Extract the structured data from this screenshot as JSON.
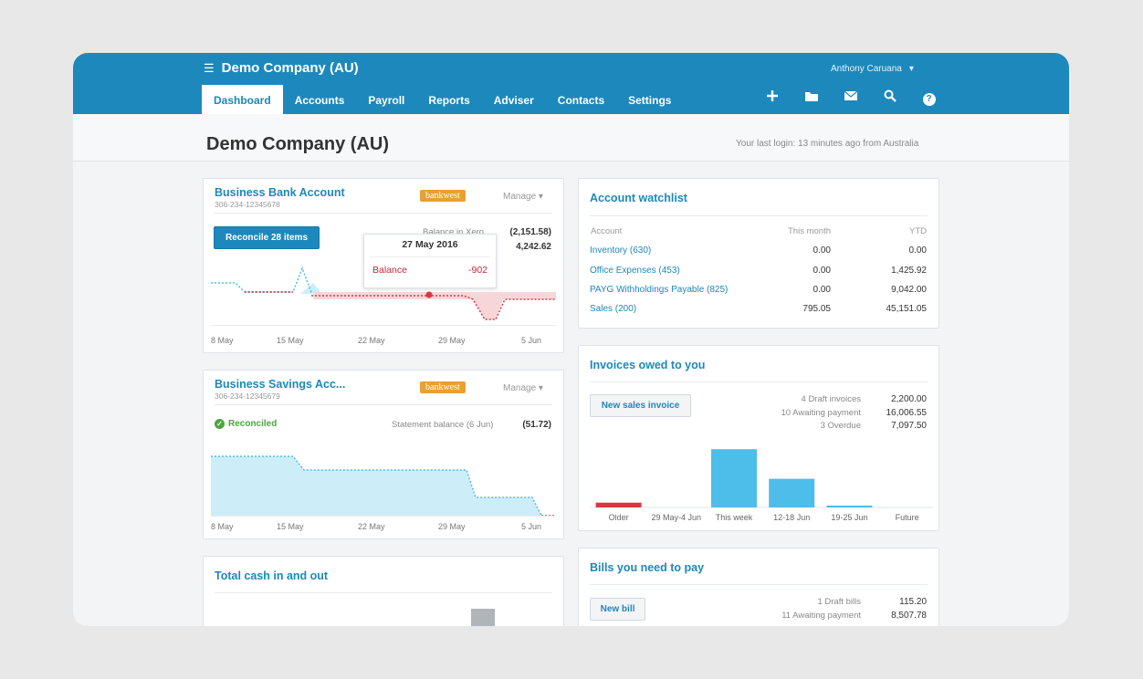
{
  "app": {
    "company_name": "Demo Company (AU)",
    "user_name": "Anthony Caruana",
    "user_caret": "▾",
    "menu_icon": "☰"
  },
  "nav": {
    "tabs": [
      "Dashboard",
      "Accounts",
      "Payroll",
      "Reports",
      "Adviser",
      "Contacts",
      "Settings"
    ],
    "active": "Dashboard",
    "tools": [
      "add-icon",
      "folder-icon",
      "mail-icon",
      "search-icon",
      "help-icon"
    ]
  },
  "header": {
    "title": "Demo Company (AU)",
    "last_login": "Your last login: 13 minutes ago from Australia"
  },
  "bank_account": {
    "title": "Business Bank Account",
    "number": "306-234-12345678",
    "bank_logo": "bankwest",
    "manage": "Manage",
    "reconcile_button": "Reconcile 28 items",
    "balance_label": "Balance in Xero",
    "balance_xero": "(2,151.58)",
    "statement_balance": "4,242.62",
    "tooltip_date": "27 May 2016",
    "tooltip_label": "Balance",
    "tooltip_value": "-902",
    "x_labels": [
      "8 May",
      "15 May",
      "22 May",
      "29 May",
      "5 Jun"
    ]
  },
  "savings_account": {
    "title": "Business Savings Acc...",
    "number": "306-234-12345679",
    "bank_logo": "bankwest",
    "manage": "Manage",
    "status": "Reconciled",
    "statement_label": "Statement balance (6 Jun)",
    "statement_value": "(51.72)",
    "x_labels": [
      "8 May",
      "15 May",
      "22 May",
      "29 May",
      "5 Jun"
    ]
  },
  "cash": {
    "title": "Total cash in and out"
  },
  "watchlist": {
    "title": "Account watchlist",
    "headers": [
      "Account",
      "This month",
      "YTD"
    ],
    "rows": [
      {
        "account": "Inventory (630)",
        "month": "0.00",
        "ytd": "0.00"
      },
      {
        "account": "Office Expenses (453)",
        "month": "0.00",
        "ytd": "1,425.92"
      },
      {
        "account": "PAYG Withholdings Payable (825)",
        "month": "0.00",
        "ytd": "9,042.00"
      },
      {
        "account": "Sales (200)",
        "month": "795.05",
        "ytd": "45,151.05"
      }
    ]
  },
  "invoices": {
    "title": "Invoices owed to you",
    "button": "New sales invoice",
    "summary": [
      {
        "label": "4 Draft invoices",
        "value": "2,200.00"
      },
      {
        "label": "10 Awaiting payment",
        "value": "16,006.55"
      },
      {
        "label": "3 Overdue",
        "value": "7,097.50"
      }
    ]
  },
  "bills": {
    "title": "Bills you need to pay",
    "button": "New bill",
    "summary": [
      {
        "label": "1 Draft bills",
        "value": "115.20"
      },
      {
        "label": "11 Awaiting payment",
        "value": "8,507.78"
      }
    ]
  },
  "chart_data": {
    "type": "bar",
    "categories": [
      "Older",
      "29 May-4 Jun",
      "This week",
      "12-18 Jun",
      "19-25 Jun",
      "Future"
    ],
    "values": [
      500,
      0,
      6100,
      3000,
      150,
      0
    ],
    "colors": [
      "#d9383f",
      "#4dbde9",
      "#4dbde9",
      "#4dbde9",
      "#4dbde9",
      "#4dbde9"
    ],
    "ylim": [
      0,
      6500
    ]
  },
  "colors": {
    "brand": "#1d88bc",
    "positive_fill": "#cdeef8",
    "negative_fill": "#f7d6d9",
    "negative": "#c8283d",
    "bankwest": "#e8a035",
    "reconciled": "#4aa63d"
  }
}
